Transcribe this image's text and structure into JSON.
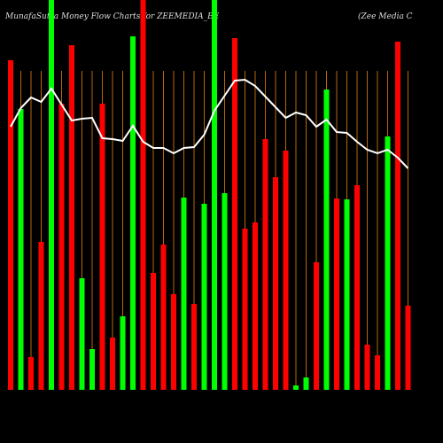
{
  "chart_data": {
    "type": "bar",
    "title": "MunafaSutra  Money Flow  Charts for ZEEMEDIA_BE",
    "subtitle": "(Zee  Media  C",
    "categories": [
      null,
      null,
      null,
      null,
      null,
      null,
      null,
      null,
      null,
      null,
      null,
      null,
      null,
      null,
      null,
      null,
      null,
      null,
      null,
      null,
      null,
      null,
      null,
      null,
      null,
      null,
      null,
      null,
      null,
      null,
      null,
      null,
      null,
      null,
      null,
      null,
      null,
      null,
      null,
      null
    ],
    "values": [
      372,
      317,
      37,
      167,
      440,
      323,
      389,
      126,
      46,
      323,
      59,
      83,
      399,
      440,
      132,
      164,
      108,
      217,
      97,
      210,
      440,
      222,
      397,
      182,
      189,
      283,
      240,
      270,
      5,
      14,
      144,
      339,
      216,
      215,
      231,
      51,
      39,
      286,
      393,
      95
    ],
    "colors": [
      "#ff0000",
      "#00ff00",
      "#ff0000",
      "#ff0000",
      "#00ff00",
      "#ff0000",
      "#ff0000",
      "#00ff00",
      "#00ff00",
      "#ff0000",
      "#ff0000",
      "#00ff00",
      "#00ff00",
      "#ff0000",
      "#ff0000",
      "#ff0000",
      "#ff0000",
      "#00ff00",
      "#ff0000",
      "#00ff00",
      "#00ff00",
      "#00ff00",
      "#ff0000",
      "#ff0000",
      "#ff0000",
      "#ff0000",
      "#ff0000",
      "#ff0000",
      "#00ff00",
      "#00ff00",
      "#ff0000",
      "#00ff00",
      "#ff0000",
      "#00ff00",
      "#ff0000",
      "#ff0000",
      "#ff0000",
      "#00ff00",
      "#ff0000",
      "#ff0000"
    ],
    "line_values": [
      297,
      318,
      330,
      325,
      340,
      322,
      304,
      306,
      307,
      284,
      283,
      281,
      298,
      280,
      273,
      273,
      267,
      273,
      274,
      288,
      315,
      332,
      349,
      350,
      343,
      331,
      319,
      307,
      313,
      310,
      297,
      305,
      291,
      290,
      280,
      271,
      267,
      271,
      262,
      250
    ],
    "line_color": "#ffffff",
    "ylim": [
      0,
      440
    ],
    "grid": true,
    "grid_color": "#b8660b"
  }
}
